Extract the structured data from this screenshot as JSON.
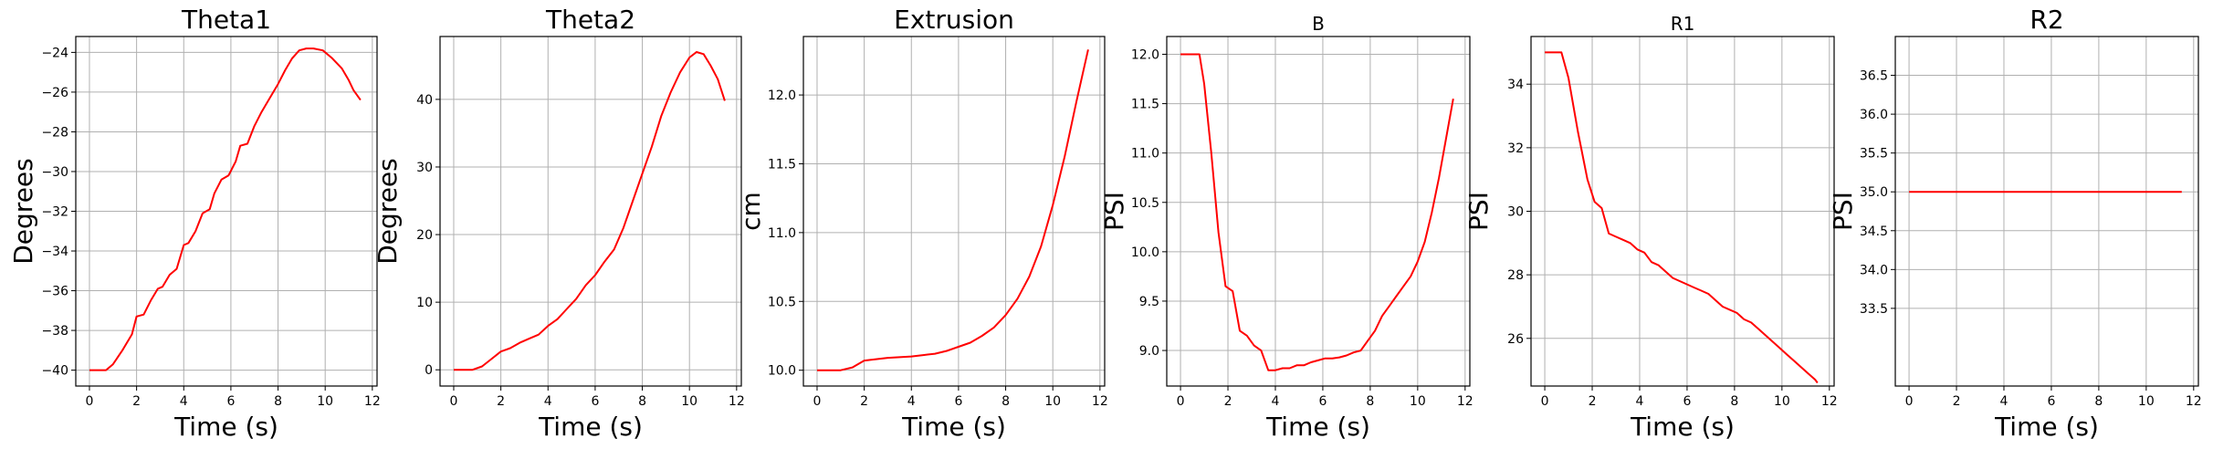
{
  "colors": {
    "line": "#ff0000",
    "grid": "#b0b0b0",
    "frame": "#000000"
  },
  "chart_data": [
    {
      "type": "line",
      "title": "Theta1",
      "xlabel": "Time (s)",
      "ylabel": "Degrees",
      "xlim": [
        -0.58,
        12.2
      ],
      "ylim": [
        -40.8,
        -23.2
      ],
      "xticks": [
        0,
        2,
        4,
        6,
        8,
        10,
        12
      ],
      "yticks": [
        -40,
        -38,
        -36,
        -34,
        -32,
        -30,
        -28,
        -26,
        -24
      ],
      "grid": true,
      "series": [
        {
          "x": [
            0,
            0.7,
            1.0,
            1.4,
            1.8,
            2.0,
            2.3,
            2.6,
            2.9,
            3.1,
            3.4,
            3.7,
            4.0,
            4.2,
            4.5,
            4.8,
            5.1,
            5.3,
            5.6,
            5.9,
            6.2,
            6.4,
            6.7,
            7.0,
            7.3,
            7.6,
            8.0,
            8.3,
            8.6,
            8.9,
            9.2,
            9.5,
            9.9,
            10.3,
            10.7,
            11.0,
            11.2,
            11.5
          ],
          "y": [
            -40.0,
            -40.0,
            -39.7,
            -39.0,
            -38.2,
            -37.3,
            -37.2,
            -36.5,
            -35.9,
            -35.8,
            -35.2,
            -34.9,
            -33.7,
            -33.6,
            -33.0,
            -32.1,
            -31.9,
            -31.1,
            -30.4,
            -30.2,
            -29.5,
            -28.7,
            -28.6,
            -27.7,
            -27.0,
            -26.4,
            -25.6,
            -24.9,
            -24.3,
            -23.9,
            -23.8,
            -23.8,
            -23.9,
            -24.3,
            -24.8,
            -25.4,
            -25.9,
            -26.4
          ]
        }
      ]
    },
    {
      "type": "line",
      "title": "Theta2",
      "xlabel": "Time (s)",
      "ylabel": "Degrees",
      "xlim": [
        -0.58,
        12.2
      ],
      "ylim": [
        -2.4,
        49.3
      ],
      "xticks": [
        0,
        2,
        4,
        6,
        8,
        10,
        12
      ],
      "yticks": [
        0,
        10,
        20,
        30,
        40
      ],
      "grid": true,
      "series": [
        {
          "x": [
            0,
            0.8,
            1.2,
            1.6,
            2.0,
            2.4,
            2.8,
            3.2,
            3.6,
            4.0,
            4.4,
            4.8,
            5.2,
            5.6,
            6.0,
            6.4,
            6.8,
            7.2,
            7.6,
            8.0,
            8.4,
            8.8,
            9.2,
            9.6,
            10.0,
            10.3,
            10.6,
            10.9,
            11.2,
            11.5
          ],
          "y": [
            0,
            0,
            0.5,
            1.6,
            2.7,
            3.2,
            4.0,
            4.6,
            5.2,
            6.5,
            7.5,
            9.0,
            10.5,
            12.5,
            14.0,
            16.0,
            17.8,
            21.0,
            25.0,
            29.0,
            33.0,
            37.5,
            41.0,
            44.0,
            46.2,
            47.0,
            46.7,
            45.0,
            43.0,
            39.8
          ]
        }
      ]
    },
    {
      "type": "line",
      "title": "Extrusion",
      "xlabel": "Time (s)",
      "ylabel": "cm",
      "xlim": [
        -0.58,
        12.2
      ],
      "ylim": [
        9.885,
        12.425
      ],
      "xticks": [
        0,
        2,
        4,
        6,
        8,
        10,
        12
      ],
      "yticks": [
        10.0,
        10.5,
        11.0,
        11.5,
        12.0
      ],
      "grid": true,
      "series": [
        {
          "x": [
            0,
            1.0,
            1.5,
            2.0,
            2.5,
            3.0,
            4.0,
            4.5,
            5.0,
            5.5,
            6.0,
            6.5,
            7.0,
            7.5,
            8.0,
            8.5,
            9.0,
            9.5,
            10.0,
            10.5,
            11.0,
            11.5
          ],
          "y": [
            10.0,
            10.0,
            10.02,
            10.07,
            10.08,
            10.09,
            10.1,
            10.11,
            10.12,
            10.14,
            10.17,
            10.2,
            10.25,
            10.31,
            10.4,
            10.52,
            10.68,
            10.9,
            11.2,
            11.55,
            11.95,
            12.33
          ]
        }
      ]
    },
    {
      "type": "line",
      "title": "B",
      "xlabel": "Time (s)",
      "ylabel": "PSI",
      "xlim": [
        -0.58,
        12.2
      ],
      "ylim": [
        8.64,
        12.18
      ],
      "xticks": [
        0,
        2,
        4,
        6,
        8,
        10,
        12
      ],
      "yticks": [
        9.0,
        9.5,
        10.0,
        10.5,
        11.0,
        11.5,
        12.0
      ],
      "grid": true,
      "series": [
        {
          "x": [
            0,
            0.8,
            1.0,
            1.3,
            1.6,
            1.9,
            2.2,
            2.5,
            2.8,
            3.1,
            3.4,
            3.7,
            4.0,
            4.3,
            4.6,
            4.9,
            5.2,
            5.5,
            5.8,
            6.1,
            6.4,
            6.7,
            7.0,
            7.3,
            7.6,
            7.9,
            8.2,
            8.5,
            8.8,
            9.1,
            9.4,
            9.7,
            10.0,
            10.3,
            10.6,
            10.9,
            11.2,
            11.5
          ],
          "y": [
            12.0,
            12.0,
            11.7,
            11.0,
            10.2,
            9.65,
            9.6,
            9.2,
            9.15,
            9.05,
            9.0,
            8.8,
            8.8,
            8.82,
            8.82,
            8.85,
            8.85,
            8.88,
            8.9,
            8.92,
            8.92,
            8.93,
            8.95,
            8.98,
            9.0,
            9.1,
            9.2,
            9.35,
            9.45,
            9.55,
            9.65,
            9.75,
            9.9,
            10.1,
            10.4,
            10.75,
            11.15,
            11.55
          ]
        }
      ]
    },
    {
      "type": "line",
      "title": "R1",
      "xlabel": "Time (s)",
      "ylabel": "PSI",
      "xlim": [
        -0.58,
        12.2
      ],
      "ylim": [
        24.5,
        35.5
      ],
      "xticks": [
        0,
        2,
        4,
        6,
        8,
        10,
        12
      ],
      "yticks": [
        26,
        28,
        30,
        32,
        34
      ],
      "grid": true,
      "series": [
        {
          "x": [
            0,
            0.7,
            1.0,
            1.4,
            1.8,
            2.1,
            2.4,
            2.7,
            3.0,
            3.3,
            3.6,
            3.9,
            4.2,
            4.5,
            4.8,
            5.1,
            5.4,
            5.7,
            6.0,
            6.3,
            6.6,
            6.9,
            7.2,
            7.5,
            7.8,
            8.1,
            8.4,
            8.7,
            9.0,
            9.3,
            9.6,
            9.9,
            10.2,
            10.5,
            10.8,
            11.1,
            11.4,
            11.5
          ],
          "y": [
            35.0,
            35.0,
            34.2,
            32.5,
            31.0,
            30.3,
            30.1,
            29.3,
            29.2,
            29.1,
            29.0,
            28.8,
            28.7,
            28.4,
            28.3,
            28.1,
            27.9,
            27.8,
            27.7,
            27.6,
            27.5,
            27.4,
            27.2,
            27.0,
            26.9,
            26.8,
            26.6,
            26.5,
            26.3,
            26.1,
            25.9,
            25.7,
            25.5,
            25.3,
            25.1,
            24.9,
            24.7,
            24.6
          ]
        }
      ]
    },
    {
      "type": "line",
      "title": "R2",
      "xlabel": "Time (s)",
      "ylabel": "PSI",
      "xlim": [
        -0.58,
        12.2
      ],
      "ylim": [
        32.5,
        37.0
      ],
      "xticks": [
        0,
        2,
        4,
        6,
        8,
        10,
        12
      ],
      "yticks": [
        33.5,
        34.0,
        34.5,
        35.0,
        35.5,
        36.0,
        36.5
      ],
      "grid": true,
      "series": [
        {
          "x": [
            0,
            11.5
          ],
          "y": [
            35.0,
            35.0
          ]
        }
      ]
    }
  ]
}
